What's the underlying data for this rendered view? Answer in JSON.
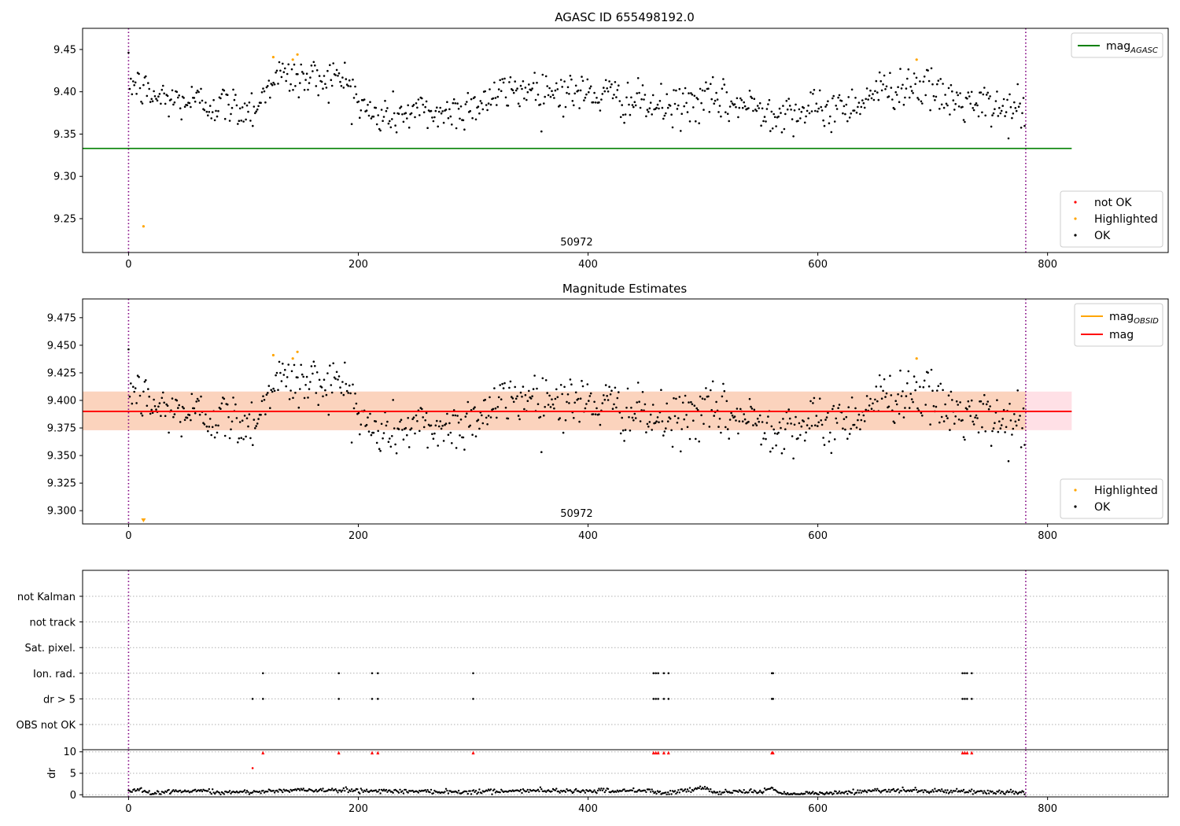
{
  "figure": {
    "title": "AGASC ID 655498192.0"
  },
  "colors": {
    "ok": "#000000",
    "highlighted": "#ffa500",
    "not_ok": "#ff0000",
    "agasc_line": "#008000",
    "mag_line": "#ff0000",
    "obsid_line": "#ffa500",
    "band_orange": "#fbd3bd",
    "band_pink": "#ffe0e6",
    "obs_marker": "#800080"
  },
  "chart_data": [
    {
      "id": "panel1",
      "type": "scatter",
      "title": "",
      "xlabel": "",
      "ylabel": "",
      "xlim": [
        -40,
        905
      ],
      "ylim": [
        9.21,
        9.475
      ],
      "xticks": [
        0,
        200,
        400,
        600,
        800
      ],
      "xtick_labels": [
        "0",
        "200",
        "400",
        "600",
        "800"
      ],
      "yticks": [
        9.25,
        9.3,
        9.35,
        9.4,
        9.45
      ],
      "ytick_labels": [
        "9.25",
        "9.30",
        "9.35",
        "9.40",
        "9.45"
      ],
      "annotation": {
        "text": "50972",
        "x": 390
      },
      "obs_boundaries": [
        0,
        781
      ],
      "hlines": [
        {
          "name": "mag_AGASC",
          "y": 9.333,
          "x0": -40,
          "x1": 821,
          "color": "agasc_line"
        }
      ],
      "legend_lines": {
        "placement": "upper right",
        "items": [
          {
            "main": "mag",
            "sub": "AGASC",
            "color": "agasc_line"
          }
        ]
      },
      "legend_points": {
        "placement": "lower right",
        "items": [
          {
            "label": "not OK",
            "color": "not_ok"
          },
          {
            "label": "Highlighted",
            "color": "highlighted"
          },
          {
            "label": "OK",
            "color": "ok"
          }
        ]
      },
      "highlighted_points": [
        [
          13,
          9.241
        ],
        [
          126,
          9.441
        ],
        [
          143,
          9.438
        ],
        [
          147,
          9.444
        ],
        [
          686,
          9.438
        ]
      ],
      "ok_series": {
        "name": "OK",
        "n": 780,
        "x_range": [
          0,
          780
        ],
        "anchors_x": [
          0,
          10,
          20,
          40,
          60,
          80,
          100,
          110,
          118,
          125,
          150,
          175,
          195,
          200,
          215,
          250,
          280,
          300,
          330,
          350,
          380,
          420,
          450,
          470,
          500,
          530,
          560,
          600,
          630,
          650,
          685,
          705,
          730,
          760,
          780
        ],
        "anchors_y": [
          9.413,
          9.405,
          9.395,
          9.39,
          9.388,
          9.385,
          9.38,
          9.383,
          9.395,
          9.42,
          9.415,
          9.418,
          9.41,
          9.385,
          9.37,
          9.376,
          9.375,
          9.385,
          9.4,
          9.405,
          9.4,
          9.395,
          9.385,
          9.38,
          9.39,
          9.385,
          9.378,
          9.377,
          9.385,
          9.4,
          9.41,
          9.395,
          9.385,
          9.38,
          9.378
        ],
        "scatter": 0.012
      }
    },
    {
      "id": "panel2",
      "type": "scatter",
      "title": "Magnitude Estimates",
      "xlabel": "",
      "ylabel": "",
      "xlim": [
        -40,
        905
      ],
      "ylim": [
        9.288,
        9.492
      ],
      "xticks": [
        0,
        200,
        400,
        600,
        800
      ],
      "xtick_labels": [
        "0",
        "200",
        "400",
        "600",
        "800"
      ],
      "yticks": [
        9.3,
        9.325,
        9.35,
        9.375,
        9.4,
        9.425,
        9.45,
        9.475
      ],
      "ytick_labels": [
        "9.300",
        "9.325",
        "9.350",
        "9.375",
        "9.400",
        "9.425",
        "9.450",
        "9.475"
      ],
      "annotation": {
        "text": "50972",
        "x": 390
      },
      "obs_boundaries": [
        0,
        781
      ],
      "bands": [
        {
          "y0": 9.373,
          "y1": 9.408,
          "x0": -40,
          "x1": 821,
          "color": "band_pink"
        },
        {
          "y0": 9.373,
          "y1": 9.408,
          "x0": -40,
          "x1": 781,
          "color": "band_orange"
        }
      ],
      "hlines": [
        {
          "name": "mag",
          "y": 9.39,
          "x0": -40,
          "x1": 821,
          "color": "mag_line"
        }
      ],
      "legend_lines": {
        "placement": "upper right",
        "items": [
          {
            "main": "mag",
            "sub": "OBSID",
            "color": "obsid_line"
          },
          {
            "main": "mag",
            "sub": "",
            "color": "mag_line"
          }
        ]
      },
      "legend_points": {
        "placement": "lower right",
        "items": [
          {
            "label": "Highlighted",
            "color": "highlighted"
          },
          {
            "label": "OK",
            "color": "ok"
          }
        ]
      },
      "highlighted_points": [
        [
          126,
          9.441
        ],
        [
          143,
          9.438
        ],
        [
          147,
          9.444
        ],
        [
          686,
          9.438
        ]
      ],
      "clipped_marker": {
        "x": 13,
        "color": "highlighted"
      },
      "ok_series_ref": "panel1"
    },
    {
      "id": "panel3",
      "type": "scatter",
      "title": "",
      "xlim": [
        -40,
        905
      ],
      "categories": [
        "not Kalman",
        "not track",
        "Sat. pixel.",
        "Ion. rad.",
        "dr > 5",
        "OBS not OK"
      ],
      "flag_events": {
        "Ion. rad.": [
          117,
          183,
          212,
          217,
          300,
          457,
          459,
          461,
          466,
          470,
          560,
          561,
          726,
          728,
          730,
          734
        ],
        "dr > 5": [
          108,
          117,
          183,
          212,
          217,
          300,
          457,
          459,
          461,
          466,
          470,
          560,
          561,
          726,
          728,
          730,
          734
        ]
      },
      "obs_boundaries": [
        0,
        781
      ]
    },
    {
      "id": "panel4",
      "type": "scatter",
      "title": "",
      "xlabel": "",
      "ylabel": "dr",
      "xlim": [
        -40,
        905
      ],
      "ylim": [
        -0.5,
        10.5
      ],
      "xticks": [
        0,
        200,
        400,
        600,
        800
      ],
      "xtick_labels": [
        "0",
        "200",
        "400",
        "600",
        "800"
      ],
      "yticks": [
        0,
        5,
        10
      ],
      "ytick_labels": [
        "0",
        "5",
        "10"
      ],
      "obs_boundaries": [
        0,
        781
      ],
      "clipped_points": [
        117,
        183,
        212,
        217,
        300,
        457,
        459,
        461,
        466,
        470,
        560,
        561,
        726,
        728,
        730,
        734
      ],
      "outlier_points": [
        [
          108,
          6.2
        ]
      ],
      "dr_series": {
        "name": "dr",
        "n": 780,
        "x_range": [
          0,
          780
        ],
        "anchors_x": [
          0,
          10,
          20,
          30,
          50,
          70,
          80,
          100,
          150,
          200,
          250,
          300,
          350,
          400,
          450,
          470,
          490,
          500,
          510,
          550,
          560,
          570,
          580,
          620,
          650,
          700,
          740,
          780
        ],
        "anchors_y": [
          1.0,
          1.2,
          0.4,
          0.6,
          0.8,
          0.9,
          0.5,
          0.6,
          1.1,
          1.0,
          0.8,
          0.7,
          1.0,
          0.9,
          1.0,
          0.4,
          1.3,
          1.6,
          0.6,
          0.8,
          1.5,
          0.2,
          0.2,
          0.4,
          1.0,
          0.9,
          0.7,
          0.6
        ],
        "scatter": 0.25
      }
    }
  ]
}
